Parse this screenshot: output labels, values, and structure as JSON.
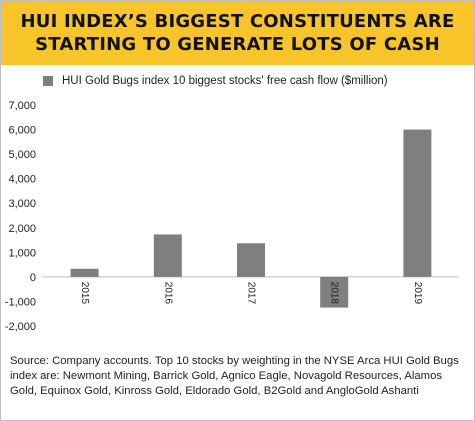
{
  "header": {
    "line1": "HUI INDEX’S BIGGEST CONSTITUENTS ARE",
    "line2": "STARTING TO GENERATE LOTS OF CASH",
    "background": "#f7c52a"
  },
  "source_note": "Source: Company accounts. Top 10 stocks by weighting in the NYSE Arca HUI Gold Bugs index are: Newmont Mining, Barrick Gold, Agnico Eagle, Novagold Resources, Alamos Gold, Equinox Gold, Kinross Gold, Eldorado Gold, B2Gold and AngloGold Ashanti",
  "chart_data": {
    "type": "bar",
    "title": "",
    "xlabel": "",
    "ylabel": "",
    "categories": [
      "2015",
      "2016",
      "2017",
      "2018",
      "2019"
    ],
    "series": [
      {
        "name": "HUI Gold Bugs index 10 biggest stocks' free cash flow ($million)",
        "values": [
          330,
          1730,
          1370,
          -1250,
          6000
        ],
        "color": "#7f7f7f"
      }
    ],
    "ylim": [
      -2000,
      7000
    ],
    "yticks": [
      7000,
      6000,
      5000,
      4000,
      3000,
      2000,
      1000,
      0,
      -1000,
      -2000
    ],
    "ytick_labels": [
      "7,000",
      "6,000",
      "5,000",
      "4,000",
      "3,000",
      "2,000",
      "1,000",
      "0",
      "-1,000",
      "-2,000"
    ],
    "grid": false,
    "legend": "top-left",
    "category_labels_rotated": true
  }
}
